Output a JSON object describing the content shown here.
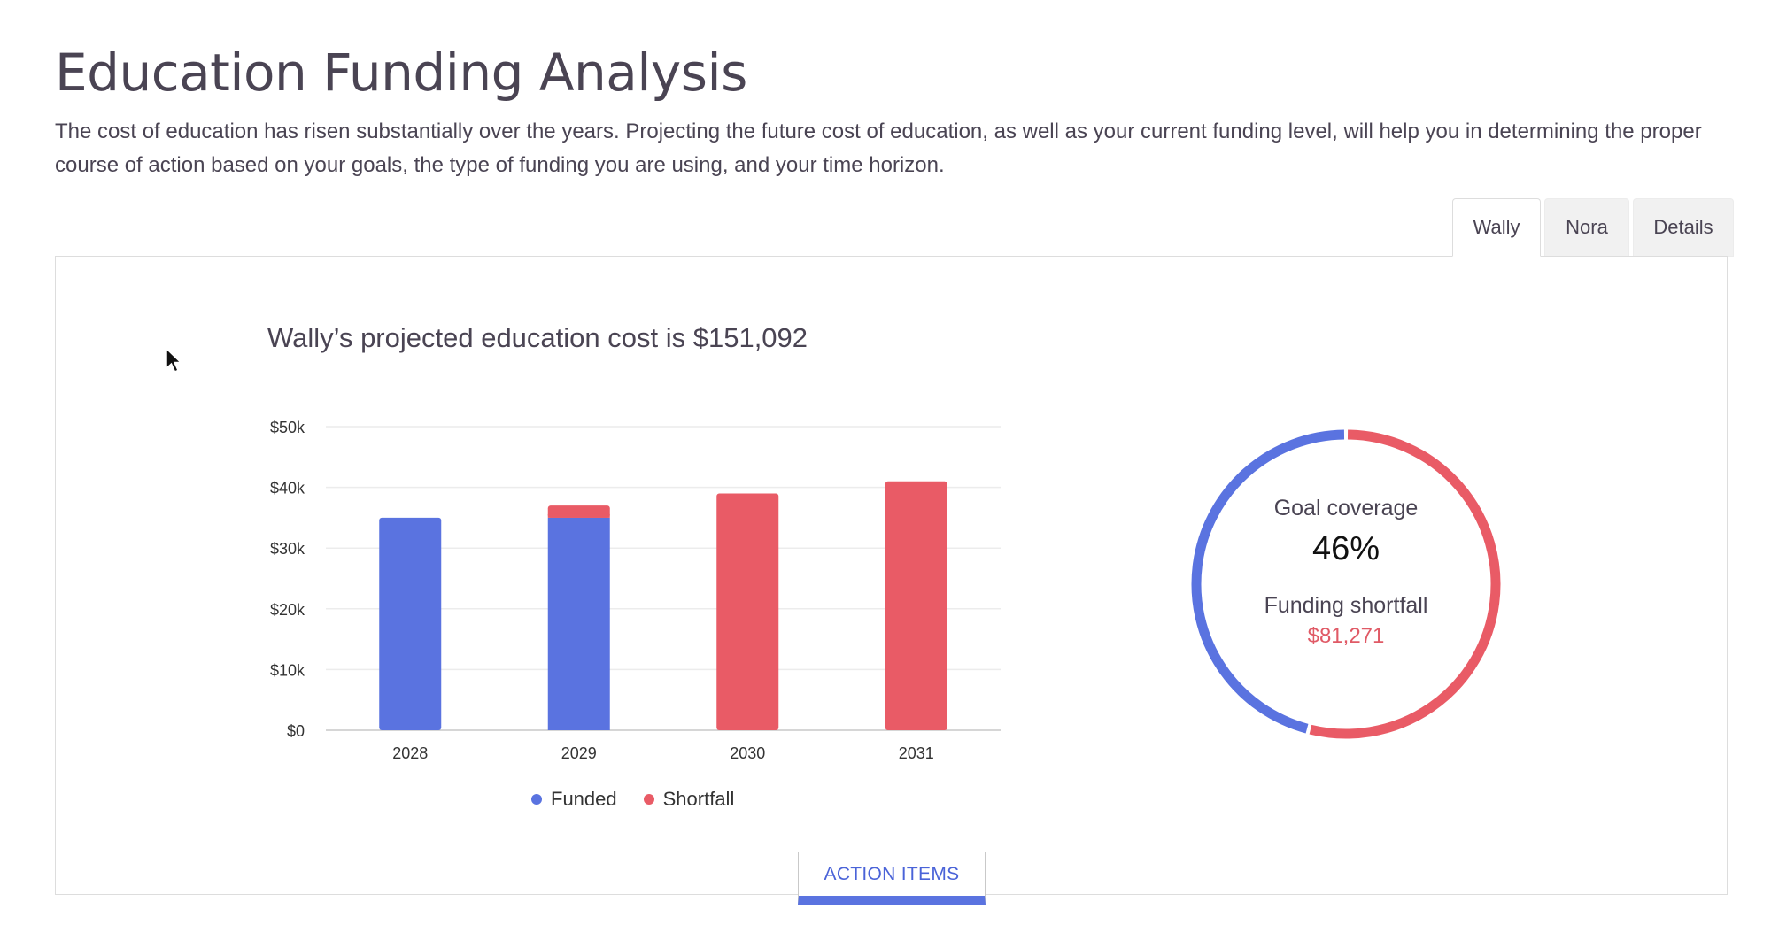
{
  "page": {
    "title": "Education Funding Analysis",
    "intro": "The cost of education has risen substantially over the years. Projecting the future cost of education, as well as your current funding level, will help you in determining the proper course of action based on your goals, the type of funding you are using, and your time horizon."
  },
  "tabs": [
    {
      "label": "Wally",
      "active": true
    },
    {
      "label": "Nora",
      "active": false
    },
    {
      "label": "Details",
      "active": false
    }
  ],
  "panel": {
    "chart_heading": "Wally’s projected education cost is $151,092",
    "legend": [
      {
        "label": "Funded",
        "color": "#5a73e0"
      },
      {
        "label": "Shortfall",
        "color": "#e95b66"
      }
    ],
    "coverage": {
      "label": "Goal coverage",
      "percent_text": "46%",
      "percent": 46,
      "shortfall_label": "Funding shortfall",
      "shortfall_value": "$81,271"
    },
    "action_button": "ACTION ITEMS"
  },
  "chart_data": {
    "type": "bar",
    "stacked": true,
    "categories": [
      "2028",
      "2029",
      "2030",
      "2031"
    ],
    "series": [
      {
        "name": "Funded",
        "color": "#5a73e0",
        "values": [
          35000,
          35000,
          0,
          0
        ]
      },
      {
        "name": "Shortfall",
        "color": "#e95b66",
        "values": [
          0,
          2000,
          39000,
          41000
        ]
      }
    ],
    "y_ticks": [
      "$0",
      "$10k",
      "$20k",
      "$30k",
      "$40k",
      "$50k"
    ],
    "ylim": [
      0,
      50000
    ],
    "grid": true,
    "legend_position": "bottom"
  },
  "colors": {
    "funded": "#5a73e0",
    "shortfall": "#e95b66",
    "text": "#4a4453"
  },
  "icons": {
    "cursor": "mouse-pointer-icon"
  }
}
